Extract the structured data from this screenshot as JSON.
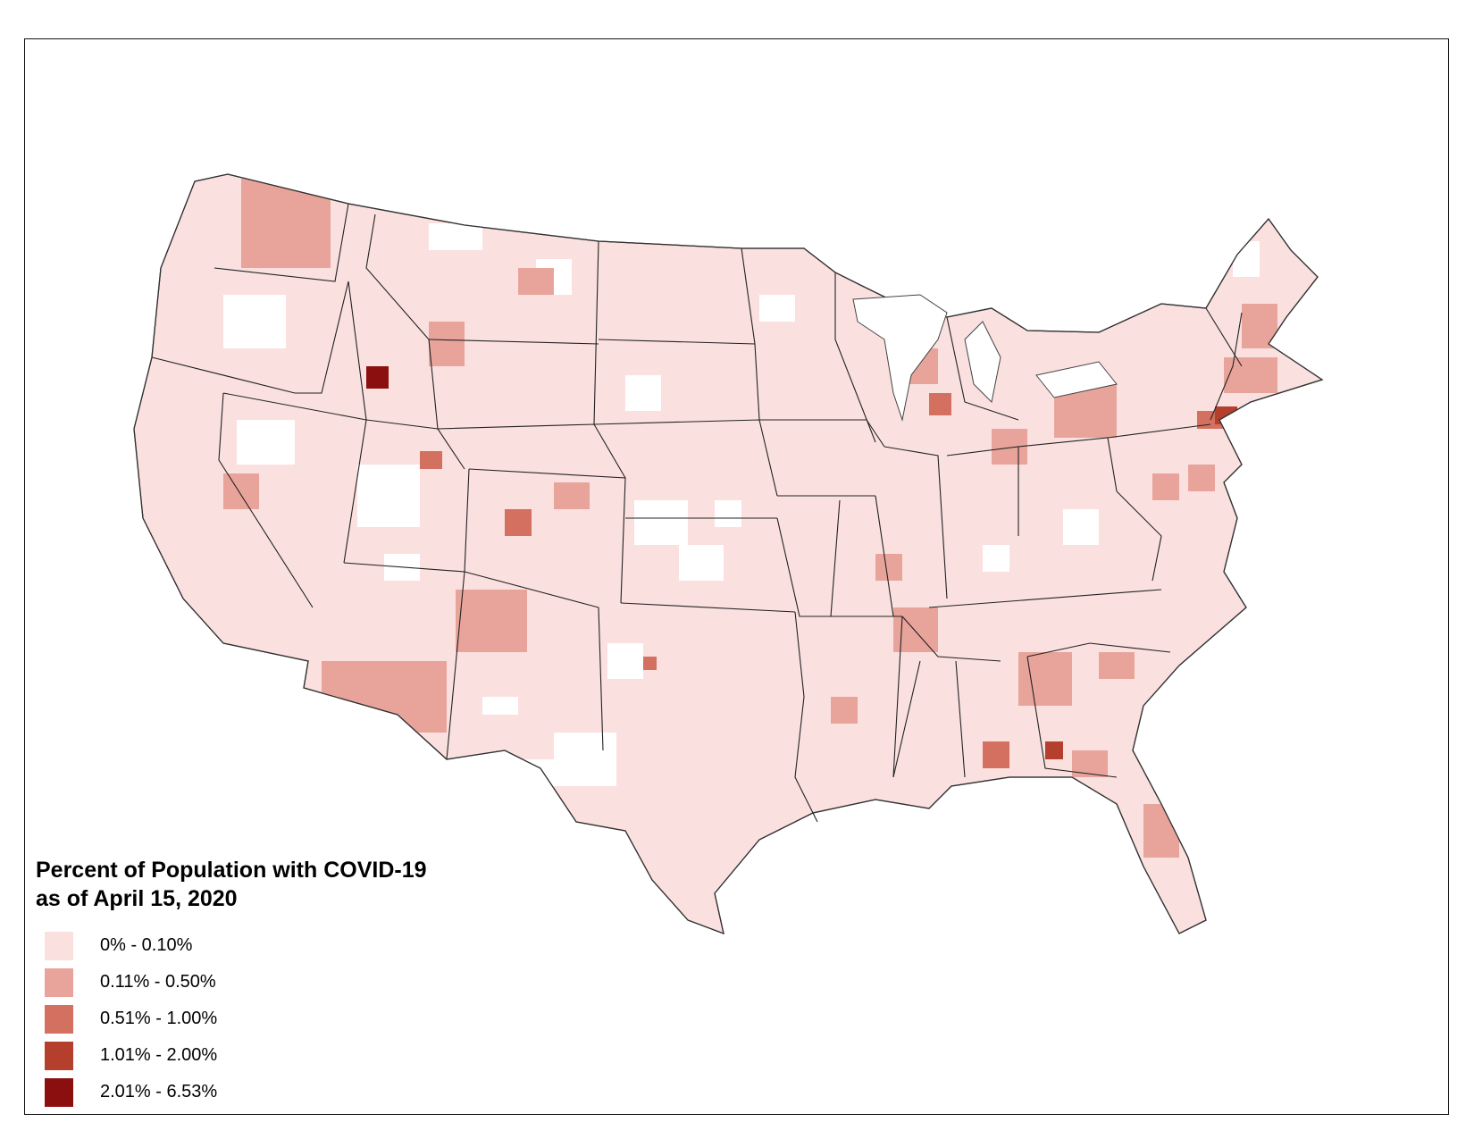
{
  "map": {
    "title_line1": "Percent of Population with COVID-19",
    "title_line2": "as of April 15, 2020",
    "legend": [
      {
        "label": "0% - 0.10%",
        "color": "#fbe0e0"
      },
      {
        "label": "0.11% - 0.50%",
        "color": "#e8a49b"
      },
      {
        "label": "0.51% - 1.00%",
        "color": "#d4705f"
      },
      {
        "label": "1.01% - 2.00%",
        "color": "#b53f2d"
      },
      {
        "label": "2.01% - 6.53%",
        "color": "#8b0f0f"
      }
    ],
    "background_color": "#ffffff",
    "no_data_color": "#ffffff",
    "border_color": "#333333"
  }
}
